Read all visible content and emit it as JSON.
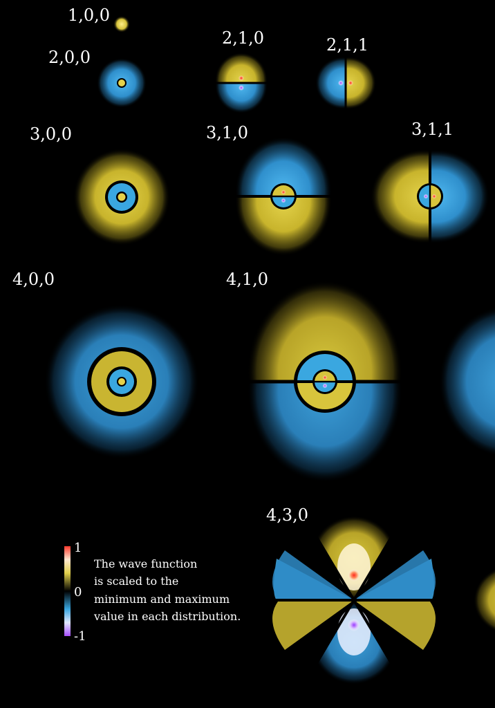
{
  "colors": {
    "background": "#000000",
    "positive": "#d4c23a",
    "negative": "#3aa7e0",
    "positive_peak": "#ff3b2e",
    "negative_peak": "#a64dff",
    "node_line": "#000000"
  },
  "orbitals": [
    {
      "id": "orbital-1-0-0",
      "label": "1,0,0"
    },
    {
      "id": "orbital-2-0-0",
      "label": "2,0,0"
    },
    {
      "id": "orbital-2-1-0",
      "label": "2,1,0"
    },
    {
      "id": "orbital-2-1-1",
      "label": "2,1,1"
    },
    {
      "id": "orbital-3-0-0",
      "label": "3,0,0"
    },
    {
      "id": "orbital-3-1-0",
      "label": "3,1,0"
    },
    {
      "id": "orbital-3-1-1",
      "label": "3,1,1"
    },
    {
      "id": "orbital-4-0-0",
      "label": "4,0,0"
    },
    {
      "id": "orbital-4-1-0",
      "label": "4,1,0"
    },
    {
      "id": "orbital-4-3-0",
      "label": "4,3,0"
    }
  ],
  "legend": {
    "max_label": "1",
    "zero_label": "0",
    "min_label": "-1",
    "caption_lines": [
      "The wave function",
      "is scaled to the",
      "minimum and maximum",
      "value in each distribution."
    ]
  }
}
